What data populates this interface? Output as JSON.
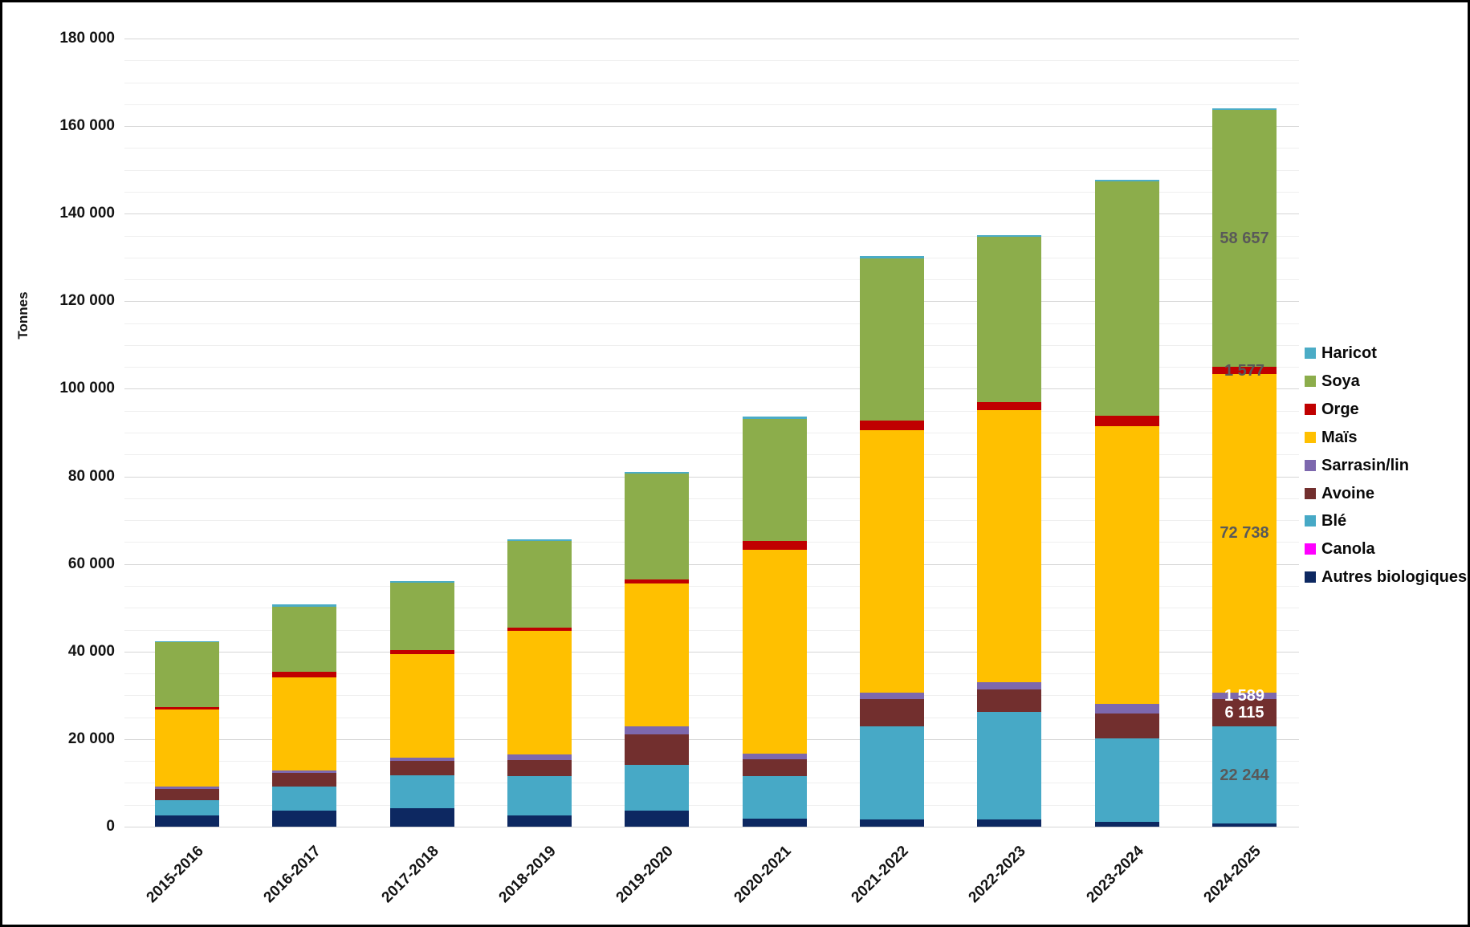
{
  "chart_data": {
    "type": "bar",
    "stacked": true,
    "ylabel": "Tonnes",
    "ylim": [
      0,
      180000
    ],
    "y_major_step": 20000,
    "y_minor_step": 5000,
    "y_tick_labels": [
      "0",
      "20 000",
      "40 000",
      "60 000",
      "80 000",
      "100 000",
      "120 000",
      "140 000",
      "160 000",
      "180 000"
    ],
    "grid": true,
    "legend_position": "right",
    "categories": [
      "2015-2016",
      "2016-2017",
      "2017-2018",
      "2018-2019",
      "2019-2020",
      "2020-2021",
      "2021-2022",
      "2022-2023",
      "2023-2024",
      "2024-2025"
    ],
    "series": [
      {
        "name": "Autres biologiques",
        "color": "#0d2861",
        "values": [
          2500,
          3700,
          4300,
          2500,
          3700,
          1800,
          1700,
          1700,
          1150,
          700
        ]
      },
      {
        "name": "Canola",
        "color": "#ff00ff",
        "values": [
          0,
          0,
          0,
          0,
          0,
          0,
          0,
          0,
          0,
          0
        ]
      },
      {
        "name": "Blé",
        "color": "#47a9c6",
        "values": [
          3500,
          5400,
          7400,
          9000,
          10500,
          9700,
          21200,
          24600,
          19000,
          22244
        ]
      },
      {
        "name": "Avoine",
        "color": "#722f2e",
        "values": [
          2600,
          3200,
          3400,
          3700,
          6800,
          3900,
          6200,
          5000,
          5700,
          6115
        ]
      },
      {
        "name": "Sarrasin/lin",
        "color": "#7d68ae",
        "values": [
          550,
          600,
          700,
          1300,
          1900,
          1300,
          1500,
          1650,
          2200,
          1589
        ]
      },
      {
        "name": "Maïs",
        "color": "#ffc000",
        "values": [
          17600,
          21200,
          23700,
          28200,
          32600,
          46600,
          59900,
          62100,
          63400,
          72738
        ]
      },
      {
        "name": "Orge",
        "color": "#c00000",
        "values": [
          550,
          1300,
          900,
          700,
          1000,
          1900,
          2250,
          2000,
          2400,
          1577
        ]
      },
      {
        "name": "Soya",
        "color": "#8cad4b",
        "values": [
          15000,
          14900,
          15300,
          19900,
          24200,
          28000,
          37000,
          37650,
          53500,
          58657
        ]
      },
      {
        "name": "Haricot",
        "color": "#4bacc6",
        "values": [
          100,
          400,
          400,
          400,
          400,
          400,
          600,
          400,
          400,
          400
        ]
      }
    ],
    "legend_order": [
      "Haricot",
      "Soya",
      "Orge",
      "Maïs",
      "Sarrasin/lin",
      "Avoine",
      "Blé",
      "Canola",
      "Autres biologiques"
    ],
    "data_labels": [
      {
        "category": "2024-2025",
        "series": "Soya",
        "text": "58 657",
        "color": "#595959"
      },
      {
        "category": "2024-2025",
        "series": "Orge",
        "text": "1 577",
        "color": "#595959"
      },
      {
        "category": "2024-2025",
        "series": "Maïs",
        "text": "72 738",
        "color": "#595959"
      },
      {
        "category": "2024-2025",
        "series": "Sarrasin/lin",
        "text": "1 589",
        "color": "#ffffff"
      },
      {
        "category": "2024-2025",
        "series": "Avoine",
        "text": "6 115",
        "color": "#ffffff"
      },
      {
        "category": "2024-2025",
        "series": "Blé",
        "text": "22 244",
        "color": "#595959"
      }
    ]
  }
}
